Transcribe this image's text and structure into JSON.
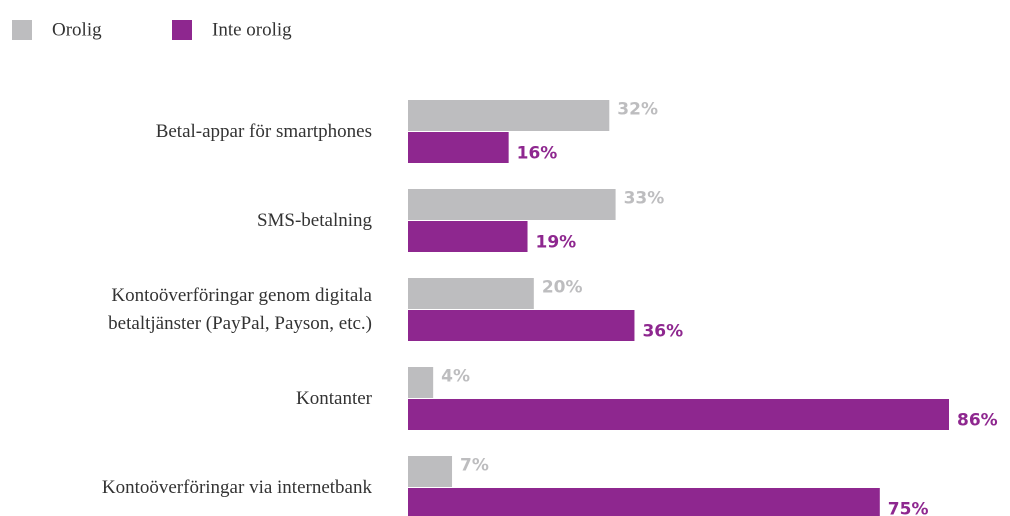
{
  "chart_data": {
    "type": "bar",
    "orientation": "horizontal",
    "categories": [
      "Betal-appar för smartphones",
      "SMS-betalning",
      "Kontoöverföringar genom digitala\nbetaltjänster (PayPal, Payson, etc.)",
      "Kontanter",
      "Kontoöverföringar via internetbank"
    ],
    "series": [
      {
        "name": "Orolig",
        "color": "#bdbdbf",
        "values": [
          32,
          33,
          20,
          4,
          7
        ],
        "value_labels": [
          "32%",
          "33%",
          "20%",
          "4%",
          "7%"
        ]
      },
      {
        "name": "Inte orolig",
        "color": "#8e278f",
        "values": [
          16,
          19,
          36,
          86,
          75
        ],
        "value_labels": [
          "16%",
          "19%",
          "36%",
          "86%",
          "75%"
        ]
      }
    ],
    "legend": "top-left"
  }
}
